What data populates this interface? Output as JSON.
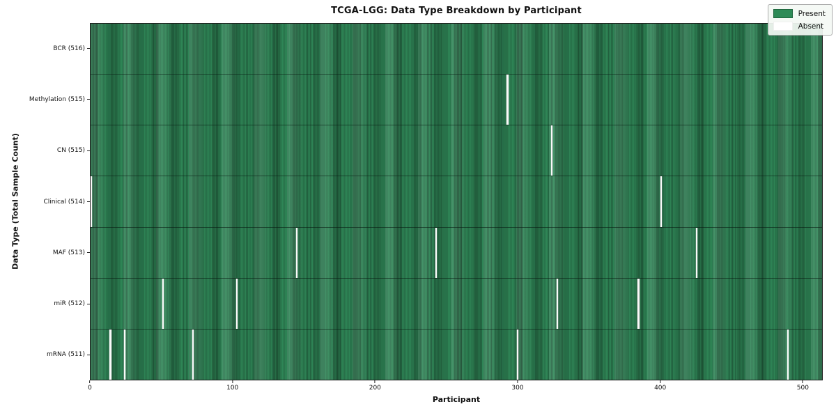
{
  "chart_data": {
    "type": "heatmap",
    "title": "TCGA-LGG: Data Type Breakdown by Participant",
    "xlabel": "Participant",
    "ylabel": "Data Type (Total Sample Count)",
    "x_ticks": [
      0,
      100,
      200,
      300,
      400,
      500
    ],
    "x_max": 514,
    "n_participants": 516,
    "grid": false,
    "legend_position": "upper right",
    "legend": {
      "present_label": "Present",
      "absent_label": "Absent"
    },
    "colors": {
      "present": "#2e8b57",
      "present_edge": "#1d5e3a",
      "absent": "#ffffff"
    },
    "rows": [
      {
        "label": "BCR (516)",
        "data_type": "BCR",
        "sample_count": 516,
        "absent_participants": []
      },
      {
        "label": "Methylation (515)",
        "data_type": "Methylation",
        "sample_count": 515,
        "absent_participants": [
          293
        ]
      },
      {
        "label": "CN (515)",
        "data_type": "CN",
        "sample_count": 515,
        "absent_participants": [
          324
        ]
      },
      {
        "label": "Clinical (514)",
        "data_type": "Clinical",
        "sample_count": 514,
        "absent_participants": [
          0,
          401
        ]
      },
      {
        "label": "MAF (513)",
        "data_type": "MAF",
        "sample_count": 513,
        "absent_participants": [
          145,
          243,
          426
        ]
      },
      {
        "label": "miR (512)",
        "data_type": "miR",
        "sample_count": 512,
        "absent_participants": [
          51,
          103,
          328,
          385
        ]
      },
      {
        "label": "mRNA (511)",
        "data_type": "mRNA",
        "sample_count": 511,
        "absent_participants": [
          14,
          24,
          72,
          300,
          490
        ]
      }
    ]
  }
}
